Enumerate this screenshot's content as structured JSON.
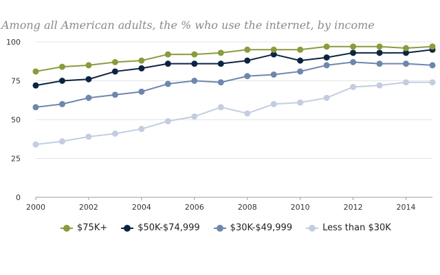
{
  "chart_data": {
    "type": "line",
    "title": "Among all American adults, the % who use the internet, by income",
    "x": [
      2000,
      2001,
      2002,
      2003,
      2004,
      2005,
      2006,
      2007,
      2008,
      2009,
      2010,
      2011,
      2012,
      2013,
      2014,
      2015
    ],
    "x_tick_labels": [
      "2000",
      "2002",
      "2004",
      "2006",
      "2008",
      "2010",
      "2012",
      "2014"
    ],
    "y_tick_labels": [
      "0",
      "25",
      "50",
      "75",
      "100"
    ],
    "xlim": [
      2000,
      2015
    ],
    "ylim": [
      0,
      100
    ],
    "grid": "horizontal",
    "legend_position": "bottom",
    "series": [
      {
        "name": "$75K+",
        "color": "#8a9b3c",
        "values": [
          81,
          84,
          85,
          87,
          88,
          92,
          92,
          93,
          95,
          95,
          95,
          97,
          97,
          97,
          96,
          97
        ]
      },
      {
        "name": "$50K-$74,999",
        "color": "#0b2541",
        "values": [
          72,
          75,
          76,
          81,
          83,
          86,
          86,
          86,
          88,
          92,
          88,
          90,
          93,
          93,
          93,
          95
        ]
      },
      {
        "name": "$30K-$49,999",
        "color": "#6d87ad",
        "values": [
          58,
          60,
          64,
          66,
          68,
          73,
          75,
          74,
          78,
          79,
          81,
          85,
          87,
          86,
          86,
          85
        ]
      },
      {
        "name": "Less than $30K",
        "color": "#c3cde0",
        "values": [
          34,
          36,
          39,
          41,
          44,
          49,
          52,
          58,
          54,
          60,
          61,
          64,
          71,
          72,
          74,
          74
        ]
      }
    ]
  }
}
